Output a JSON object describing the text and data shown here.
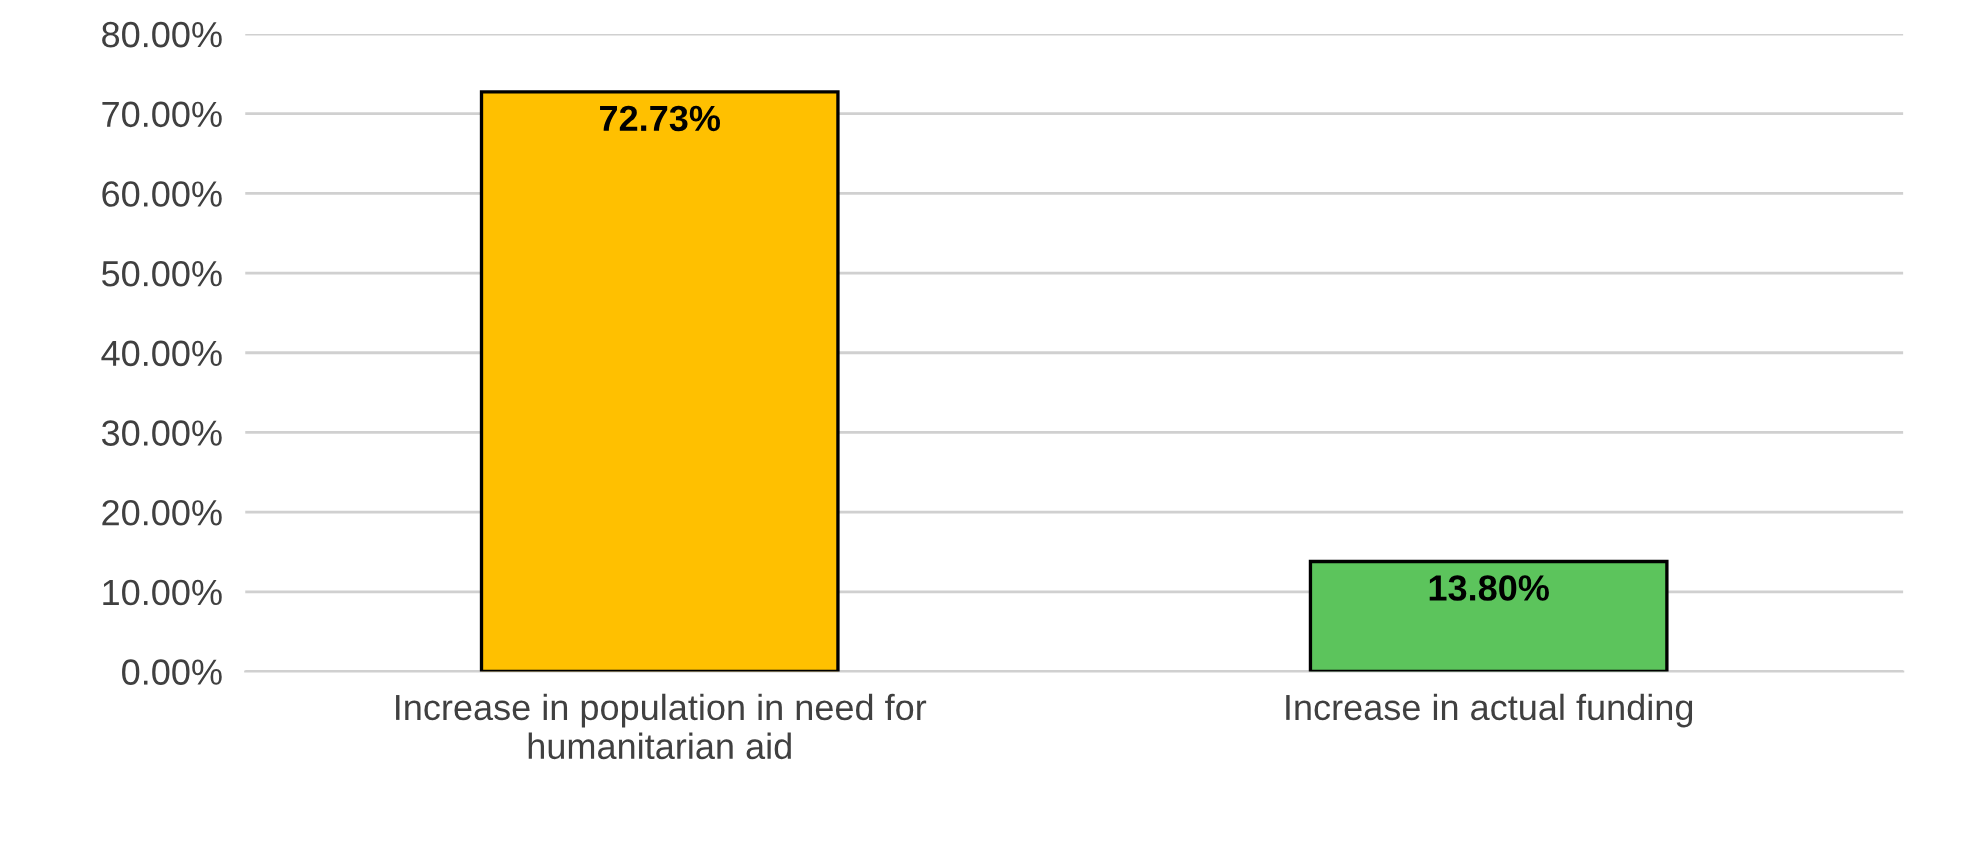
{
  "chart_data": {
    "type": "bar",
    "categories": [
      "Increase in population in need for\nhumanitarian aid",
      "Increase in actual funding"
    ],
    "values": [
      72.73,
      13.8
    ],
    "colors": [
      "#ffc000",
      "#5cc45c"
    ],
    "value_labels": [
      "72.73%",
      "13.80%"
    ],
    "ylim": [
      0,
      80
    ],
    "yticks": [
      {
        "value": 0,
        "label": "0.00%"
      },
      {
        "value": 10,
        "label": "10.00%"
      },
      {
        "value": 20,
        "label": "20.00%"
      },
      {
        "value": 30,
        "label": "30.00%"
      },
      {
        "value": 40,
        "label": "40.00%"
      },
      {
        "value": 50,
        "label": "50.00%"
      },
      {
        "value": 60,
        "label": "60.00%"
      },
      {
        "value": 70,
        "label": "70.00%"
      },
      {
        "value": 80,
        "label": "80.00%"
      }
    ],
    "grid": "y"
  }
}
